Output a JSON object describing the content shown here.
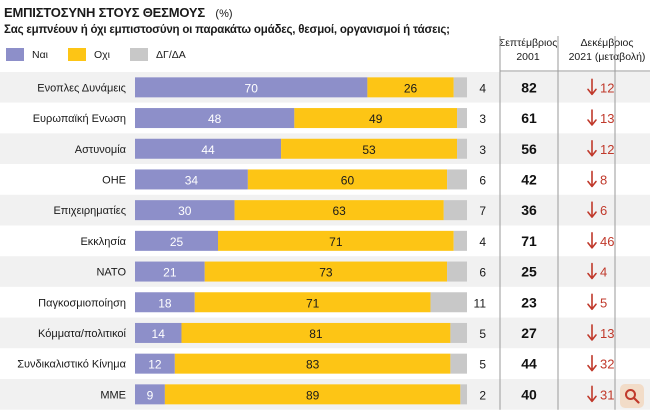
{
  "header": {
    "title": "ΕΜΠΙΣΤΟΣΥΝΗ ΣΤΟΥΣ ΘΕΣΜΟΥΣ",
    "unit": "(%)",
    "subtitle": "Σας εμπνέουν ή όχι εμπιστοσύνη οι παρακάτω ομάδες, θεσμοί, οργανισμοί ή τάσεις;"
  },
  "columns": {
    "sep2001_line1": "Σεπτέμβριος",
    "sep2001_line2": "2001",
    "dec2021_line1": "Δεκέμβριος",
    "dec2021_line2": "2021 (μεταβολή)"
  },
  "colors": {
    "nai": "#8d8fc9",
    "oxi": "#fdc515",
    "dk": "#c8c8c8",
    "change_arrow": "#c0392b",
    "row_odd": "#f1f1f1",
    "row_even": "#ffffff",
    "divider": "#9a9a9a"
  },
  "icons": {
    "zoom": "zoom-icon"
  },
  "chart_data": {
    "type": "bar",
    "stacked": true,
    "orientation": "horizontal",
    "title": "ΕΜΠΙΣΤΟΣΥΝΗ ΣΤΟΥΣ ΘΕΣΜΟΥΣ",
    "unit": "%",
    "xlim": [
      0,
      100
    ],
    "categories": [
      "Ενοπλες Δυνάμεις",
      "Ευρωπαϊκή Ενωση",
      "Αστυνομία",
      "ΟΗΕ",
      "Επιχειρηματίες",
      "Εκκλησία",
      "ΝΑΤΟ",
      "Παγκοσμιοποίηση",
      "Κόμματα/πολιτικοί",
      "Συνδικαλιστικό Κίνημα",
      "ΜΜΕ"
    ],
    "series": [
      {
        "name": "Ναι",
        "values": [
          70,
          48,
          44,
          34,
          30,
          25,
          21,
          18,
          14,
          12,
          9
        ]
      },
      {
        "name": "Οχι",
        "values": [
          26,
          49,
          53,
          60,
          63,
          71,
          73,
          71,
          81,
          83,
          89
        ]
      },
      {
        "name": "ΔΓ/ΔΑ",
        "values": [
          4,
          3,
          3,
          6,
          7,
          4,
          6,
          11,
          5,
          5,
          2
        ]
      }
    ],
    "legend": [
      "Ναι",
      "Οχι",
      "ΔΓ/ΔΑ"
    ],
    "legend_position": "top-left",
    "sep2001": [
      82,
      61,
      56,
      42,
      36,
      71,
      25,
      23,
      27,
      44,
      40
    ],
    "change": [
      12,
      13,
      12,
      8,
      6,
      46,
      4,
      5,
      13,
      32,
      31
    ],
    "change_direction": "down"
  }
}
